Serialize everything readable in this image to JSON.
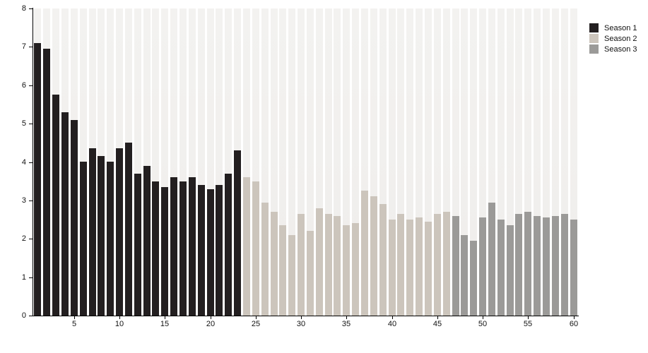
{
  "chart_data": {
    "type": "bar",
    "title": "",
    "xlabel": "",
    "ylabel": "",
    "ylim": [
      0,
      8
    ],
    "xlim": [
      1,
      60
    ],
    "grid": false,
    "legend_position": "top-right-outside",
    "y_ticks": [
      0,
      1,
      2,
      3,
      4,
      5,
      6,
      7,
      8
    ],
    "x_ticks": [
      5,
      10,
      15,
      20,
      25,
      30,
      35,
      40,
      45,
      50,
      55,
      60
    ],
    "background_columns": {
      "color_top": "#f3f2f0",
      "color_bottom": "#efedeb",
      "full_height_value": 8
    },
    "series": [
      {
        "name": "Season 1",
        "color": "#231f20",
        "episodes_start": 1,
        "values": [
          7.1,
          6.95,
          5.75,
          5.3,
          5.1,
          4.0,
          4.35,
          4.15,
          4.0,
          4.35,
          4.5,
          3.7,
          3.9,
          3.5,
          3.35,
          3.6,
          3.5,
          3.6,
          3.4,
          3.3,
          3.4,
          3.7,
          4.3
        ]
      },
      {
        "name": "Season 2",
        "color": "#ccc5bc",
        "episodes_start": 24,
        "values": [
          3.6,
          3.5,
          2.95,
          2.7,
          2.35,
          2.1,
          2.65,
          2.2,
          2.8,
          2.65,
          2.6,
          2.35,
          2.4,
          3.25,
          3.1,
          2.9,
          2.5,
          2.65,
          2.5,
          2.55,
          2.45,
          2.65,
          2.7
        ]
      },
      {
        "name": "Season 3",
        "color": "#9b9a98",
        "episodes_start": 47,
        "values": [
          2.6,
          2.1,
          1.95,
          2.55,
          2.95,
          2.5,
          2.35,
          2.65,
          2.7,
          2.6,
          2.55,
          2.6,
          2.65,
          2.5
        ]
      }
    ]
  },
  "legend": {
    "items": [
      {
        "label": "Season 1",
        "color": "#231f20"
      },
      {
        "label": "Season 2",
        "color": "#ccc5bc"
      },
      {
        "label": "Season 3",
        "color": "#9b9a98"
      }
    ]
  }
}
